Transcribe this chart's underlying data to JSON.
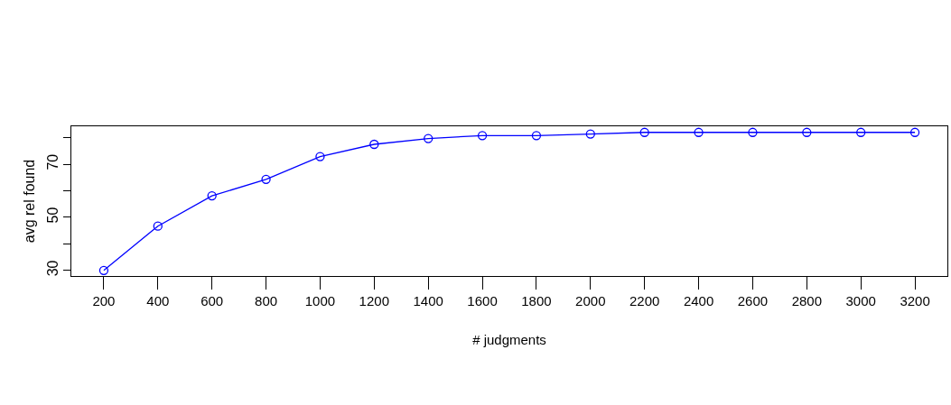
{
  "chart_data": {
    "type": "line",
    "xlabel": "# judgments",
    "ylabel": "avg rel found",
    "x": [
      200,
      400,
      600,
      800,
      1000,
      1200,
      1400,
      1600,
      1800,
      2000,
      2200,
      2400,
      2600,
      2800,
      3000,
      3200
    ],
    "series": [
      {
        "color": "#0000ff",
        "values": [
          30,
          46.7,
          58.1,
          64.3,
          72.9,
          77.5,
          79.7,
          80.8,
          80.8,
          81.4,
          82,
          82,
          82,
          82,
          82,
          82
        ]
      }
    ],
    "xlim": [
      80,
      3320
    ],
    "xticks": [
      200,
      400,
      600,
      800,
      1000,
      1200,
      1400,
      1600,
      1800,
      2000,
      2200,
      2400,
      2600,
      2800,
      3000,
      3200
    ],
    "ylim": [
      27.9,
      84.3
    ],
    "yticks": [
      30,
      {
        "value": 40,
        "label": null
      },
      50,
      {
        "value": 60,
        "label": null
      },
      70,
      {
        "value": 80,
        "label": null
      }
    ],
    "grid": false,
    "legend": false,
    "marker": "circle",
    "line_style": "solid"
  }
}
